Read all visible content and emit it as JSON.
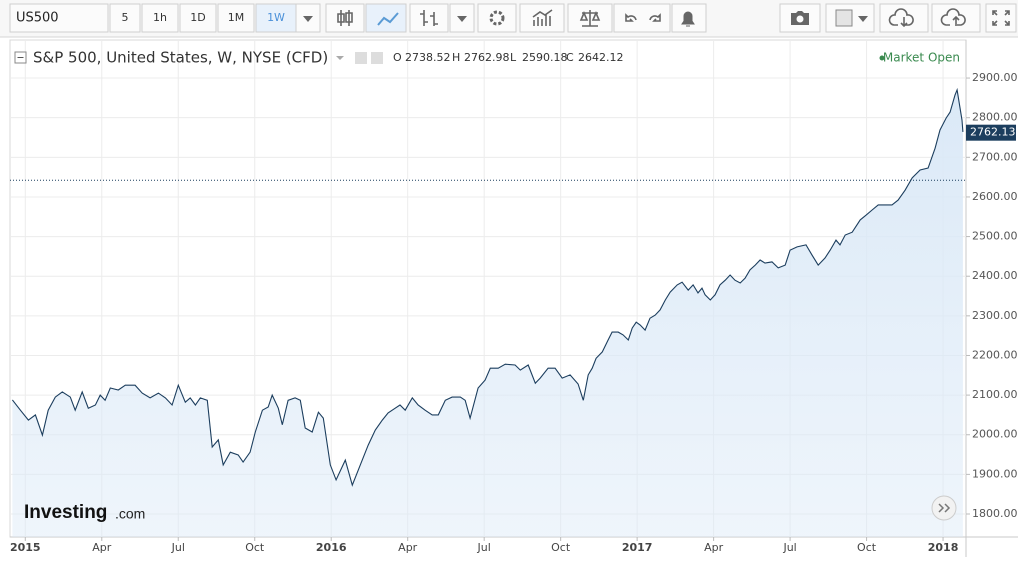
{
  "toolbar": {
    "symbol": "US500",
    "intervals": [
      "5",
      "1h",
      "1D",
      "1M",
      "1W"
    ],
    "active_interval": 4
  },
  "logo": {
    "name": "Investing",
    "suffix": ".com"
  },
  "chart_data": {
    "type": "line",
    "title": "S&P 500, United States, W, NYSE (CFD)",
    "status": "Market Open",
    "ohlc_labels": [
      "O",
      "H",
      "L",
      "C"
    ],
    "ohlc": [
      2738.52,
      2762.98,
      2590.18,
      2642.12
    ],
    "last_price": 2762.13,
    "color": "#1c3e5e",
    "area_color": "#dbe9f7",
    "grid": true,
    "x": [
      2014.958,
      2014.984,
      2015.01,
      2015.033,
      2015.056,
      2015.075,
      2015.098,
      2015.121,
      2015.147,
      2015.163,
      2015.186,
      2015.206,
      2015.229,
      2015.245,
      2015.261,
      2015.278,
      2015.304,
      2015.327,
      2015.359,
      2015.382,
      2015.408,
      2015.435,
      2015.458,
      2015.48,
      2015.5,
      2015.523,
      2015.539,
      2015.556,
      2015.572,
      2015.595,
      2015.611,
      2015.631,
      2015.647,
      2015.67,
      2015.696,
      2015.712,
      2015.735,
      2015.752,
      2015.775,
      2015.794,
      2015.807,
      2015.827,
      2015.84,
      2015.859,
      2015.882,
      2015.899,
      2015.915,
      2015.938,
      2015.958,
      2015.974,
      2015.997,
      2016.016,
      2016.046,
      2016.069,
      2016.095,
      2016.121,
      2016.144,
      2016.167,
      2016.186,
      2016.209,
      2016.225,
      2016.242,
      2016.265,
      2016.284,
      2016.307,
      2016.33,
      2016.35,
      2016.373,
      2016.395,
      2016.422,
      2016.438,
      2016.454,
      2016.48,
      2016.503,
      2016.52,
      2016.546,
      2016.569,
      2016.601,
      2016.618,
      2016.644,
      2016.667,
      2016.683,
      2016.709,
      2016.732,
      2016.755,
      2016.781,
      2016.807,
      2016.824,
      2016.84,
      2016.853,
      2016.866,
      2016.886,
      2016.905,
      2016.918,
      2016.938,
      2016.954,
      2016.971,
      2016.984,
      2016.997,
      2017.01,
      2017.026,
      2017.042,
      2017.059,
      2017.075,
      2017.092,
      2017.108,
      2017.131,
      2017.147,
      2017.167,
      2017.183,
      2017.199,
      2017.212,
      2017.222,
      2017.239,
      2017.255,
      2017.271,
      2017.288,
      2017.304,
      2017.32,
      2017.337,
      2017.353,
      2017.369,
      2017.386,
      2017.402,
      2017.418,
      2017.441,
      2017.461,
      2017.484,
      2017.5,
      2017.523,
      2017.552,
      2017.572,
      2017.592,
      2017.614,
      2017.631,
      2017.65,
      2017.663,
      2017.68,
      2017.703,
      2017.729,
      2017.748,
      2017.768,
      2017.788,
      2017.81,
      2017.833,
      2017.853,
      2017.876,
      2017.899,
      2017.925,
      2017.951,
      2017.974,
      2017.99,
      2018.01,
      2018.023,
      2018.039,
      2018.046,
      2018.062,
      2018.065
    ],
    "values": [
      2088,
      2062,
      2037,
      2050,
      1999,
      2062,
      2095,
      2108,
      2095,
      2062,
      2108,
      2067,
      2075,
      2100,
      2087,
      2118,
      2113,
      2125,
      2125,
      2105,
      2093,
      2105,
      2093,
      2075,
      2125,
      2082,
      2093,
      2075,
      2093,
      2087,
      1969,
      1987,
      1924,
      1956,
      1949,
      1931,
      1956,
      2007,
      2062,
      2070,
      2100,
      2067,
      2025,
      2087,
      2093,
      2087,
      2017,
      2007,
      2057,
      2042,
      1924,
      1886,
      1936,
      1873,
      1924,
      1974,
      2012,
      2037,
      2055,
      2067,
      2075,
      2062,
      2093,
      2075,
      2062,
      2050,
      2050,
      2087,
      2095,
      2095,
      2087,
      2042,
      2118,
      2138,
      2168,
      2168,
      2178,
      2176,
      2163,
      2176,
      2130,
      2143,
      2168,
      2168,
      2143,
      2151,
      2128,
      2087,
      2151,
      2168,
      2193,
      2209,
      2239,
      2259,
      2259,
      2252,
      2239,
      2269,
      2284,
      2277,
      2264,
      2294,
      2302,
      2315,
      2340,
      2360,
      2378,
      2385,
      2365,
      2378,
      2358,
      2370,
      2353,
      2340,
      2353,
      2378,
      2390,
      2403,
      2390,
      2383,
      2395,
      2416,
      2428,
      2441,
      2433,
      2436,
      2421,
      2428,
      2466,
      2474,
      2479,
      2453,
      2428,
      2446,
      2466,
      2491,
      2479,
      2504,
      2511,
      2542,
      2554,
      2567,
      2580,
      2580,
      2580,
      2592,
      2617,
      2648,
      2668,
      2673,
      2723,
      2769,
      2799,
      2814,
      2857,
      2870,
      2794,
      2764
    ],
    "xlim": [
      2014.95,
      2018.075
    ],
    "xticks": [
      {
        "value": 2015,
        "label": "2015"
      },
      {
        "value": 2015.25,
        "label": "Apr"
      },
      {
        "value": 2015.5,
        "label": "Jul"
      },
      {
        "value": 2015.75,
        "label": "Oct"
      },
      {
        "value": 2016,
        "label": "2016"
      },
      {
        "value": 2016.25,
        "label": "Apr"
      },
      {
        "value": 2016.5,
        "label": "Jul"
      },
      {
        "value": 2016.75,
        "label": "Oct"
      },
      {
        "value": 2017,
        "label": "2017"
      },
      {
        "value": 2017.25,
        "label": "Apr"
      },
      {
        "value": 2017.5,
        "label": "Jul"
      },
      {
        "value": 2017.75,
        "label": "Oct"
      },
      {
        "value": 2018,
        "label": "2018"
      }
    ],
    "ylim": [
      1742,
      2996
    ],
    "yticks": [
      {
        "value": 1800,
        "label": "1800.00"
      },
      {
        "value": 1900,
        "label": "1900.00"
      },
      {
        "value": 2000,
        "label": "2000.00"
      },
      {
        "value": 2100,
        "label": "2100.00"
      },
      {
        "value": 2200,
        "label": "2200.00"
      },
      {
        "value": 2300,
        "label": "2300.00"
      },
      {
        "value": 2400,
        "label": "2400.00"
      },
      {
        "value": 2500,
        "label": "2500.00"
      },
      {
        "value": 2600,
        "label": "2600.00"
      },
      {
        "value": 2700,
        "label": "2700.00"
      },
      {
        "value": 2800,
        "label": "2800.00"
      },
      {
        "value": 2900,
        "label": "2900.00"
      }
    ]
  }
}
